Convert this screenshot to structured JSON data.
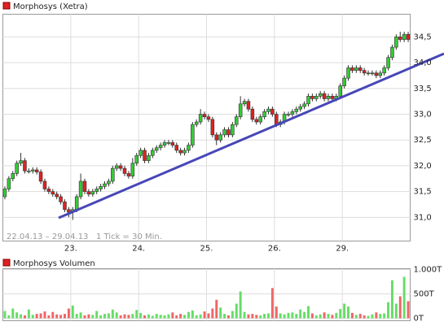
{
  "chart_data": [
    {
      "type": "candlestick",
      "subtitle": "22.04.13 – 29.04.13   1 Tick = 30 Min.",
      "xlim": [
        0,
        102
      ],
      "xticks": [
        {
          "value": 17,
          "label": "23."
        },
        {
          "value": 34,
          "label": "24."
        },
        {
          "value": 51,
          "label": "25."
        },
        {
          "value": 68,
          "label": "26."
        },
        {
          "value": 85,
          "label": "29."
        }
      ],
      "ylim": [
        30.54,
        34.94
      ],
      "yticks": [
        {
          "value": 31,
          "label": "31,0"
        },
        {
          "value": 31.5,
          "label": "31,5"
        },
        {
          "value": 32,
          "label": "32,0"
        },
        {
          "value": 32.5,
          "label": "32,5"
        },
        {
          "value": 33,
          "label": "33,0"
        },
        {
          "value": 33.5,
          "label": "33,5"
        },
        {
          "value": 34,
          "label": "34,0"
        },
        {
          "value": 34.5,
          "label": "34,5"
        }
      ],
      "grid": true,
      "up_color": "#33cc33",
      "down_color": "#dd2222",
      "series": [
        {
          "name": "Morphosys (Xetra)",
          "color": "#dd2222",
          "open": [
            31.4,
            31.55,
            31.75,
            31.85,
            32.05,
            32.1,
            31.9,
            31.9,
            31.92,
            31.88,
            31.7,
            31.55,
            31.5,
            31.45,
            31.4,
            31.3,
            31.15,
            31.1,
            31.15,
            31.4,
            31.7,
            31.5,
            31.45,
            31.5,
            31.55,
            31.6,
            31.65,
            31.7,
            31.95,
            32.0,
            31.95,
            31.85,
            31.8,
            32.05,
            32.2,
            32.3,
            32.1,
            32.2,
            32.3,
            32.35,
            32.4,
            32.45,
            32.45,
            32.4,
            32.3,
            32.25,
            32.3,
            32.4,
            32.8,
            32.85,
            33.0,
            32.95,
            32.9,
            32.6,
            32.5,
            32.6,
            32.7,
            32.6,
            32.8,
            32.95,
            33.2,
            33.25,
            33.1,
            32.9,
            32.85,
            32.95,
            33.05,
            33.1,
            33.0,
            32.8,
            32.85,
            33.0,
            33.0,
            33.05,
            33.1,
            33.15,
            33.2,
            33.35,
            33.3,
            33.35,
            33.4,
            33.3,
            33.35,
            33.3,
            33.35,
            33.55,
            33.7,
            33.9,
            33.85,
            33.9,
            33.85,
            33.8,
            33.8,
            33.8,
            33.75,
            33.8,
            33.9,
            34.1,
            34.3,
            34.5,
            34.45,
            34.55
          ],
          "high": [
            31.6,
            31.8,
            31.9,
            32.1,
            32.25,
            32.15,
            31.95,
            31.97,
            31.97,
            31.93,
            31.75,
            31.6,
            31.55,
            31.5,
            31.45,
            31.35,
            31.2,
            31.2,
            31.45,
            31.85,
            31.75,
            31.55,
            31.55,
            31.6,
            31.65,
            31.7,
            31.75,
            32.0,
            32.05,
            32.05,
            32.0,
            31.9,
            32.15,
            32.25,
            32.35,
            32.35,
            32.25,
            32.35,
            32.4,
            32.45,
            32.5,
            32.5,
            32.5,
            32.45,
            32.35,
            32.35,
            32.45,
            32.85,
            32.9,
            33.1,
            33.05,
            33.0,
            32.95,
            32.65,
            32.65,
            32.75,
            32.75,
            32.85,
            33.0,
            33.35,
            33.3,
            33.3,
            33.15,
            32.95,
            33.0,
            33.1,
            33.15,
            33.15,
            33.05,
            32.9,
            33.05,
            33.05,
            33.1,
            33.15,
            33.2,
            33.25,
            33.4,
            33.4,
            33.4,
            33.45,
            33.45,
            33.4,
            33.4,
            33.4,
            33.6,
            33.75,
            33.95,
            33.95,
            33.95,
            33.95,
            33.9,
            33.85,
            33.85,
            33.85,
            33.85,
            33.95,
            34.15,
            34.35,
            34.55,
            34.6,
            34.6,
            34.6
          ],
          "low": [
            31.35,
            31.5,
            31.7,
            31.8,
            32.0,
            31.85,
            31.85,
            31.85,
            31.83,
            31.65,
            31.5,
            31.45,
            31.4,
            31.35,
            31.25,
            31.1,
            31.0,
            30.95,
            31.1,
            31.35,
            31.45,
            31.4,
            31.4,
            31.45,
            31.5,
            31.55,
            31.6,
            31.65,
            31.9,
            31.9,
            31.8,
            31.75,
            31.75,
            32.0,
            32.15,
            32.05,
            32.05,
            32.15,
            32.25,
            32.3,
            32.35,
            32.4,
            32.35,
            32.25,
            32.2,
            32.2,
            32.25,
            32.35,
            32.75,
            32.8,
            32.9,
            32.85,
            32.55,
            32.4,
            32.45,
            32.55,
            32.55,
            32.55,
            32.75,
            32.9,
            33.15,
            33.05,
            32.85,
            32.8,
            32.8,
            32.9,
            33.0,
            32.95,
            32.75,
            32.75,
            32.8,
            32.95,
            32.95,
            33.0,
            33.05,
            33.1,
            33.15,
            33.25,
            33.25,
            33.3,
            33.25,
            33.25,
            33.25,
            33.25,
            33.3,
            33.5,
            33.65,
            33.8,
            33.8,
            33.8,
            33.75,
            33.75,
            33.75,
            33.7,
            33.7,
            33.75,
            33.85,
            34.05,
            34.25,
            34.4,
            34.4,
            34.4
          ],
          "close": [
            31.55,
            31.75,
            31.85,
            32.05,
            32.1,
            31.9,
            31.9,
            31.92,
            31.88,
            31.7,
            31.55,
            31.5,
            31.45,
            31.4,
            31.3,
            31.15,
            31.1,
            31.15,
            31.4,
            31.7,
            31.5,
            31.45,
            31.5,
            31.55,
            31.6,
            31.65,
            31.7,
            31.95,
            32.0,
            31.95,
            31.85,
            31.8,
            32.05,
            32.2,
            32.3,
            32.1,
            32.2,
            32.3,
            32.35,
            32.4,
            32.45,
            32.45,
            32.4,
            32.3,
            32.25,
            32.3,
            32.4,
            32.8,
            32.85,
            33.0,
            32.95,
            32.9,
            32.6,
            32.5,
            32.6,
            32.7,
            32.6,
            32.8,
            32.95,
            33.2,
            33.25,
            33.1,
            32.9,
            32.85,
            32.95,
            33.05,
            33.1,
            33.0,
            32.8,
            32.85,
            33.0,
            33.0,
            33.05,
            33.1,
            33.15,
            33.2,
            33.35,
            33.3,
            33.35,
            33.4,
            33.3,
            33.35,
            33.3,
            33.35,
            33.55,
            33.7,
            33.9,
            33.85,
            33.9,
            33.85,
            33.8,
            33.8,
            33.8,
            33.75,
            33.8,
            33.9,
            34.1,
            34.3,
            34.5,
            34.45,
            34.55,
            34.45
          ]
        }
      ]
    },
    {
      "type": "bar",
      "xlim": [
        0,
        102
      ],
      "ylim": [
        -50,
        1017
      ],
      "yticks": [
        {
          "value": 0,
          "label": "0T"
        },
        {
          "value": 500,
          "label": "500T"
        },
        {
          "value": 1000,
          "label": "1.000T"
        }
      ],
      "grid": true,
      "up_color": "#66dd66",
      "down_color": "#ee6666",
      "series": [
        {
          "name": "Morphosys Volumen",
          "color": "#dd2222",
          "values": [
            150,
            60,
            200,
            120,
            80,
            60,
            180,
            70,
            90,
            100,
            140,
            60,
            130,
            80,
            70,
            90,
            200,
            260,
            90,
            120,
            60,
            80,
            70,
            150,
            60,
            90,
            100,
            180,
            120,
            60,
            80,
            70,
            90,
            170,
            110,
            60,
            80,
            50,
            90,
            70,
            60,
            80,
            120,
            60,
            90,
            70,
            130,
            160,
            60,
            80,
            140,
            100,
            200,
            380,
            220,
            90,
            60,
            150,
            300,
            550,
            130,
            80,
            90,
            70,
            60,
            90,
            100,
            620,
            240,
            100,
            80,
            110,
            120,
            90,
            180,
            130,
            250,
            100,
            60,
            80,
            120,
            90,
            70,
            110,
            190,
            300,
            240,
            110,
            70,
            90,
            60,
            50,
            80,
            120,
            90,
            100,
            330,
            780,
            300,
            450,
            850,
            350
          ]
        }
      ]
    }
  ]
}
